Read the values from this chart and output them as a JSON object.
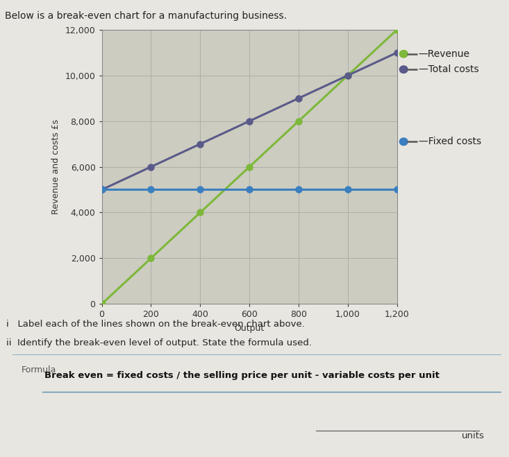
{
  "title": "Below is a break-even chart for a manufacturing business.",
  "xlabel": "Output",
  "ylabel": "Revenue and costs £s",
  "xlim": [
    0,
    1200
  ],
  "ylim": [
    0,
    12000
  ],
  "xticks": [
    0,
    200,
    400,
    600,
    800,
    1000,
    1200
  ],
  "yticks": [
    0,
    2000,
    4000,
    6000,
    8000,
    10000,
    12000
  ],
  "revenue": {
    "x": [
      0,
      200,
      400,
      600,
      800,
      1000,
      1200
    ],
    "y": [
      0,
      2000,
      4000,
      6000,
      8000,
      10000,
      12000
    ],
    "color": "#7db83a",
    "label": "Revenue"
  },
  "total_costs": {
    "x": [
      0,
      200,
      400,
      600,
      800,
      1000,
      1200
    ],
    "y": [
      5000,
      6000,
      7000,
      8000,
      9000,
      10000,
      11000
    ],
    "color": "#5a5a8a",
    "label": "Total costs"
  },
  "fixed_costs": {
    "x": [
      0,
      200,
      400,
      600,
      800,
      1000,
      1200
    ],
    "y": [
      5000,
      5000,
      5000,
      5000,
      5000,
      5000,
      5000
    ],
    "color": "#3a7fbf",
    "label": "Fixed costs"
  },
  "background_color": "#e8e6e0",
  "plot_bg_color": "#ccccc0",
  "grid_color": "#aaaaaa",
  "text_i": "i   Label each of the lines shown on the break-even chart above.",
  "text_ii": "ii  Identify the break-even level of output. State the formula used.",
  "formula_label": "Formula",
  "formula_text": "Break even = fixed costs / the selling price per unit - variable costs per unit",
  "units_text": "units",
  "panel_bg_color": "#cce0ee",
  "title_fontsize": 10,
  "axis_label_fontsize": 9,
  "tick_fontsize": 9,
  "legend_fontsize": 10
}
